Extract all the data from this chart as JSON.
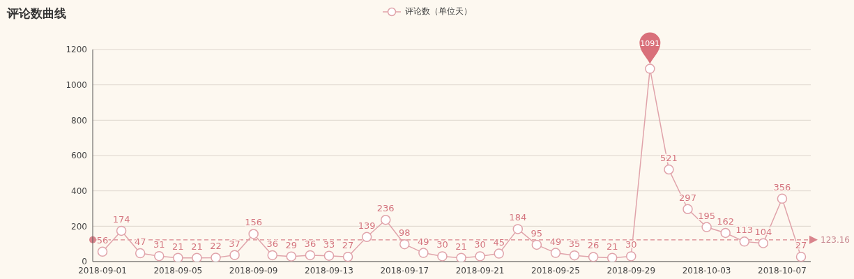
{
  "chart_data": {
    "type": "line",
    "title": "评论数曲线",
    "categories": [
      "2018-09-01",
      null,
      null,
      null,
      "2018-09-05",
      null,
      null,
      null,
      "2018-09-09",
      null,
      null,
      null,
      "2018-09-13",
      null,
      null,
      null,
      "2018-09-17",
      null,
      null,
      null,
      "2018-09-21",
      null,
      null,
      null,
      "2018-09-25",
      null,
      null,
      null,
      "2018-09-29",
      null,
      null,
      null,
      "2018-10-03",
      null,
      null,
      null,
      "2018-10-07",
      null
    ],
    "series": [
      {
        "name": "评论数（单位天）",
        "color": "#e0a3aa",
        "values": [
          56,
          174,
          47,
          31,
          21,
          21,
          22,
          37,
          156,
          36,
          29,
          36,
          33,
          27,
          139,
          236,
          98,
          49,
          30,
          21,
          30,
          45,
          184,
          95,
          49,
          35,
          26,
          21,
          30,
          1091,
          521,
          297,
          195,
          162,
          113,
          104,
          356,
          27
        ],
        "value_labels": [
          "56",
          "174",
          "47",
          "31",
          "21",
          "21",
          "22",
          "37",
          "156",
          "36",
          "29",
          "36",
          "33",
          "27",
          "139",
          "236",
          "98",
          "49",
          "30",
          "21",
          "30",
          "45",
          "184",
          "95",
          "49",
          "35",
          "26",
          "21",
          "30",
          null,
          "521",
          "297",
          "195",
          "162",
          "113",
          "104",
          "356",
          "27"
        ]
      }
    ],
    "ylim": [
      0,
      1200
    ],
    "yticks": [
      0,
      200,
      400,
      600,
      800,
      1000,
      1200
    ],
    "grid": "y",
    "legend": "top",
    "marker": "circle",
    "line_style": "solid",
    "ref_lines": [
      {
        "axis": "y",
        "value": 123.16,
        "label": "123.16",
        "color": "#d9848c",
        "line_style": "dashed"
      }
    ],
    "annotations": [
      {
        "text": "1091",
        "y": 1091
      }
    ]
  }
}
